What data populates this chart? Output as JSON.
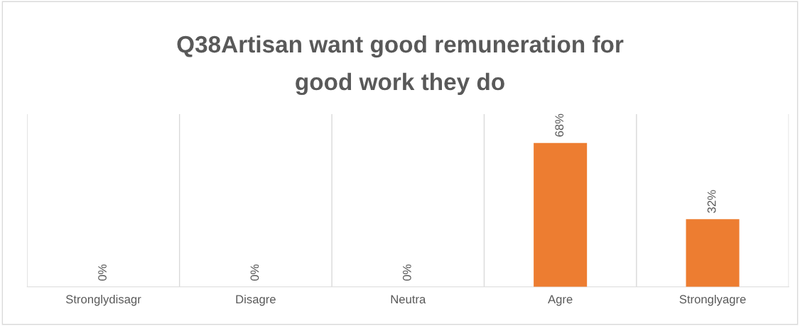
{
  "chart_data": {
    "type": "bar",
    "title": "Q38Artisan want good remuneration for\ngood work they do",
    "categories": [
      "Stronglydisagr",
      "Disagre",
      "Neutra",
      "Agre",
      "Stronglyagre"
    ],
    "values": [
      0,
      0,
      0,
      68,
      32
    ],
    "color": "#ed7d31",
    "data_labels": true,
    "value_labels": [
      "0%",
      "0%",
      "0%",
      "68%",
      "32%"
    ],
    "grid": "x",
    "legend": false
  }
}
